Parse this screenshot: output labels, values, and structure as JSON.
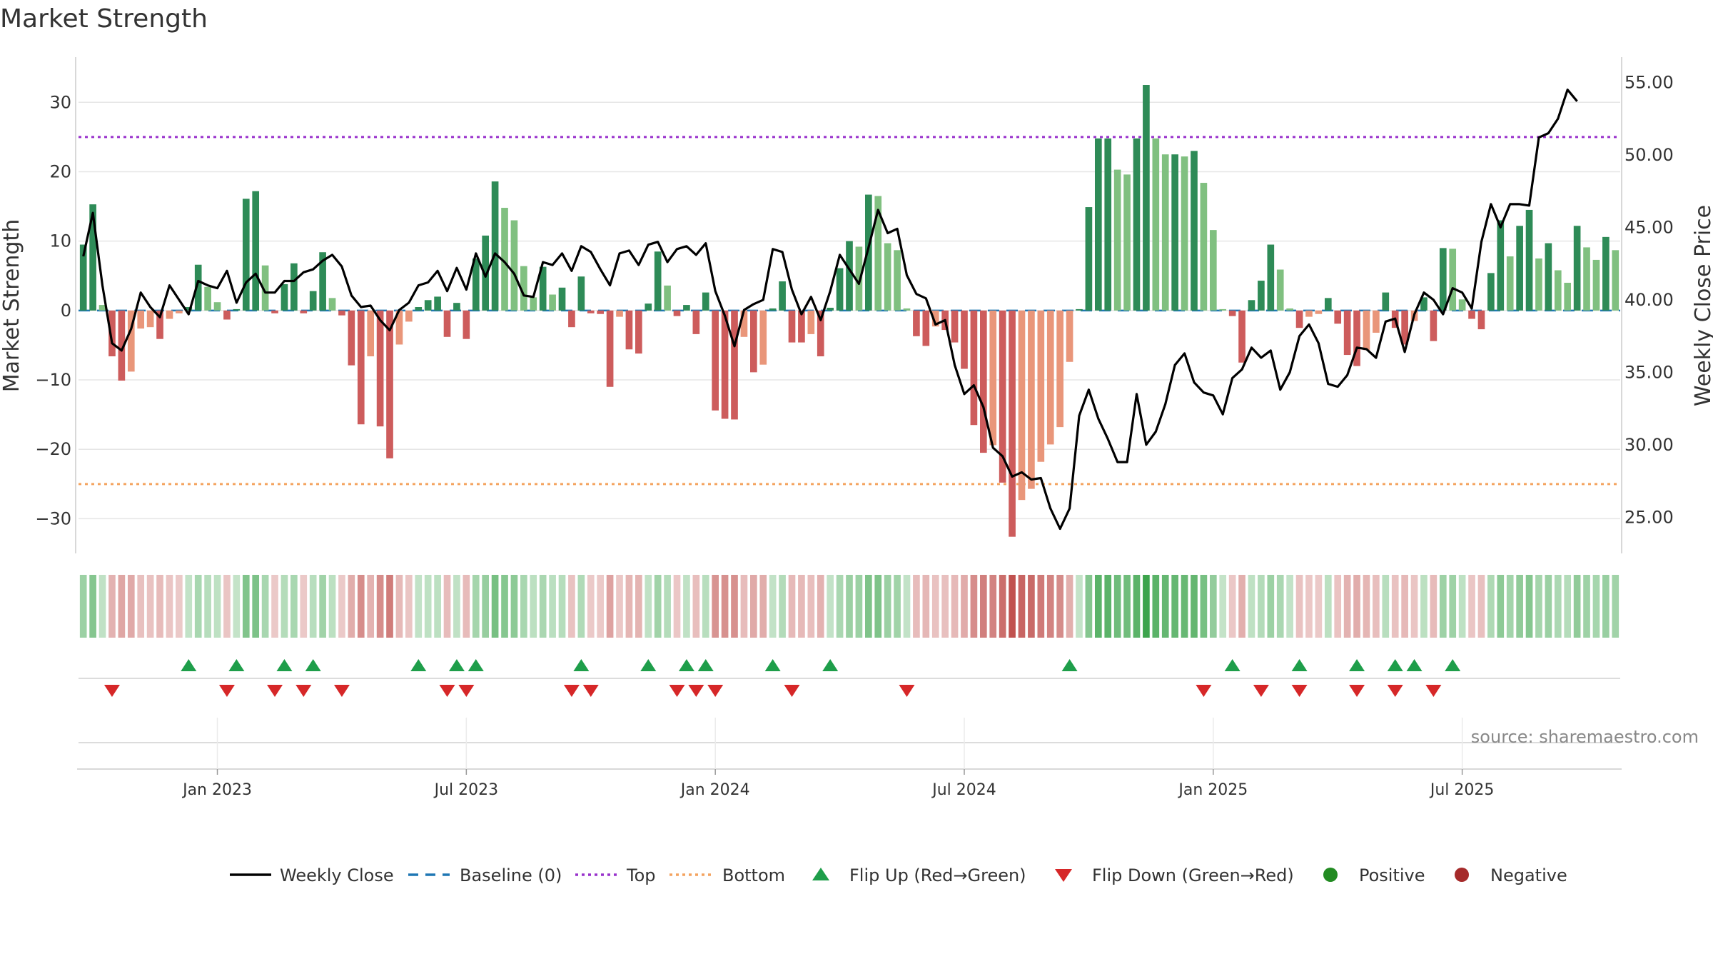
{
  "chart_data": {
    "type": "bar",
    "title": "Market Strength",
    "source": "source: sharemaestro.com",
    "ylabel_left": "Market Strength",
    "ylabel_right": "Weekly Close Price",
    "ylim_left": [
      -35,
      36
    ],
    "ylim_right": [
      22.5,
      56.5
    ],
    "yticks_left": [
      30,
      20,
      10,
      0,
      -10,
      -20,
      -30
    ],
    "ytick_labels_left": [
      "30",
      "20",
      "10",
      "0",
      "−10",
      "−20",
      "−30"
    ],
    "yticks_right": [
      55,
      50,
      45,
      40,
      35,
      30,
      25
    ],
    "ytick_labels_right": [
      "55.00",
      "50.00",
      "45.00",
      "40.00",
      "35.00",
      "30.00",
      "25.00"
    ],
    "x_start_index": 0,
    "x_ticks": [
      {
        "label": "Jan 2023",
        "index": 14
      },
      {
        "label": "Jul 2023",
        "index": 40
      },
      {
        "label": "Jan 2024",
        "index": 66
      },
      {
        "label": "Jul 2024",
        "index": 92
      },
      {
        "label": "Jan 2025",
        "index": 118
      },
      {
        "label": "Jul 2025",
        "index": 144
      }
    ],
    "reference_lines": {
      "top": 25,
      "bottom": -25,
      "baseline": 0
    },
    "strength": [
      9.5,
      15.3,
      0.8,
      -6.6,
      -10.1,
      -8.8,
      -2.6,
      -2.4,
      -4.1,
      -1.2,
      -0.4,
      0.5,
      6.6,
      3.4,
      1.2,
      -1.3,
      0.2,
      16.1,
      17.2,
      6.5,
      -0.4,
      3.8,
      6.8,
      -0.4,
      2.8,
      8.4,
      1.8,
      -0.7,
      -7.9,
      -16.4,
      -6.6,
      -16.7,
      -21.3,
      -4.9,
      -1.6,
      0.5,
      1.5,
      2,
      -3.8,
      1.1,
      -4.1,
      7.5,
      10.8,
      18.6,
      14.8,
      13,
      6.4,
      1.9,
      6.3,
      2.3,
      3.3,
      -2.4,
      4.9,
      -0.4,
      -0.5,
      -11,
      -0.9,
      -5.6,
      -6.2,
      1,
      8.5,
      3.6,
      -0.8,
      0.8,
      -3.4,
      2.6,
      -14.4,
      -15.6,
      -15.7,
      -3.8,
      -8.9,
      -7.8,
      0.3,
      4.2,
      -4.6,
      -4.6,
      -3.4,
      -6.6,
      0.4,
      6.1,
      10,
      9.2,
      16.7,
      16.5,
      9.7,
      8.7,
      0.3,
      -3.7,
      -5.1,
      -2.3,
      -2.8,
      -4.6,
      -8.4,
      -16.5,
      -20.5,
      -19.4,
      -24.8,
      -32.6,
      -27.3,
      -25.7,
      -21.8,
      -19.3,
      -16.8,
      -7.4,
      0.2,
      14.9,
      24.8,
      24.8,
      20.3,
      19.6,
      24.8,
      32.5,
      24.8,
      22.5,
      22.5,
      22.2,
      23,
      18.4,
      11.6,
      0.2,
      -0.8,
      -7.5,
      1.5,
      4.3,
      9.5,
      5.9,
      0.3,
      -2.5,
      -0.9,
      -0.5,
      1.8,
      -1.9,
      -6.4,
      -8,
      -5.7,
      -3.2,
      2.6,
      -2.5,
      -4.9,
      -1.5,
      1.9,
      -4.4,
      9,
      8.9,
      1.6,
      -1.2,
      -2.7,
      5.4,
      13,
      7.8,
      12.2,
      14.5,
      7.5,
      9.7,
      5.8,
      4,
      12.2,
      9.1,
      7.3,
      10.6,
      8.7
    ],
    "weekly_close": [
      43,
      46,
      41,
      37,
      36.5,
      38,
      40.5,
      39.5,
      38.8,
      41,
      40,
      39,
      41.3,
      41,
      40.8,
      42,
      39.8,
      41.2,
      41.8,
      40.5,
      40.5,
      41.3,
      41.3,
      41.9,
      42.1,
      42.7,
      43.1,
      42.3,
      40.3,
      39.5,
      39.6,
      38.6,
      37.9,
      39.3,
      39.8,
      41,
      41.2,
      42,
      40.6,
      42.2,
      40.7,
      43.2,
      41.6,
      43.2,
      42.6,
      41.8,
      40.3,
      40.2,
      42.6,
      42.4,
      43.2,
      42,
      43.7,
      43.3,
      42.1,
      41,
      43.2,
      43.4,
      42.4,
      43.8,
      44,
      42.6,
      43.5,
      43.7,
      43.1,
      43.9,
      40.6,
      38.9,
      36.8,
      39.3,
      39.7,
      40,
      43.5,
      43.3,
      40.7,
      39,
      40.2,
      38.6,
      40.6,
      43.1,
      42.1,
      41.1,
      43.6,
      46.2,
      44.6,
      44.9,
      41.7,
      40.4,
      40.1,
      38.3,
      38.6,
      35.5,
      33.5,
      34.1,
      32.6,
      29.8,
      29.2,
      27.8,
      28.1,
      27.6,
      27.7,
      25.6,
      24.2,
      25.6,
      32,
      33.8,
      31.8,
      30.4,
      28.8,
      28.8,
      33.5,
      30,
      30.9,
      32.8,
      35.5,
      36.3,
      34.3,
      33.6,
      33.4,
      32.1,
      34.6,
      35.2,
      36.7,
      36,
      36.5,
      33.8,
      35,
      37.5,
      38.3,
      37,
      34.2,
      34,
      34.8,
      36.7,
      36.6,
      36,
      38.5,
      38.7,
      36.4,
      39,
      40.5,
      40,
      39,
      40.8,
      40.5,
      39.4,
      44,
      46.6,
      45,
      46.6,
      46.6,
      46.5,
      51.2,
      51.5,
      52.5,
      54.5,
      53.7
    ],
    "flip_up_indices": [
      11,
      16,
      21,
      24,
      35,
      39,
      41,
      52,
      59,
      63,
      65,
      72,
      78,
      103,
      120,
      127,
      133,
      137,
      139,
      143
    ],
    "flip_down_indices": [
      3,
      15,
      20,
      23,
      27,
      38,
      40,
      51,
      53,
      62,
      64,
      66,
      74,
      86,
      117,
      123,
      127,
      133,
      137,
      141
    ],
    "legend": [
      "Weekly Close",
      "Baseline (0)",
      "Top",
      "Bottom",
      "Flip Up (Red→Green)",
      "Flip Down (Green→Red)",
      "Positive",
      "Negative"
    ],
    "colors": {
      "strong_positive": "#2e8b57",
      "weak_positive": "#80c080",
      "strong_negative": "#cd5c5c",
      "weak_negative": "#e9967a",
      "close_line": "#000000",
      "baseline": "#1f77b4",
      "top_line": "#9932cc",
      "bottom_line": "#f4a460",
      "flip_up": "#1e9e4a",
      "flip_down": "#d62728",
      "positive_dot": "#228b22",
      "negative_dot": "#a52a2a",
      "grid": "#e6e6e6"
    }
  }
}
